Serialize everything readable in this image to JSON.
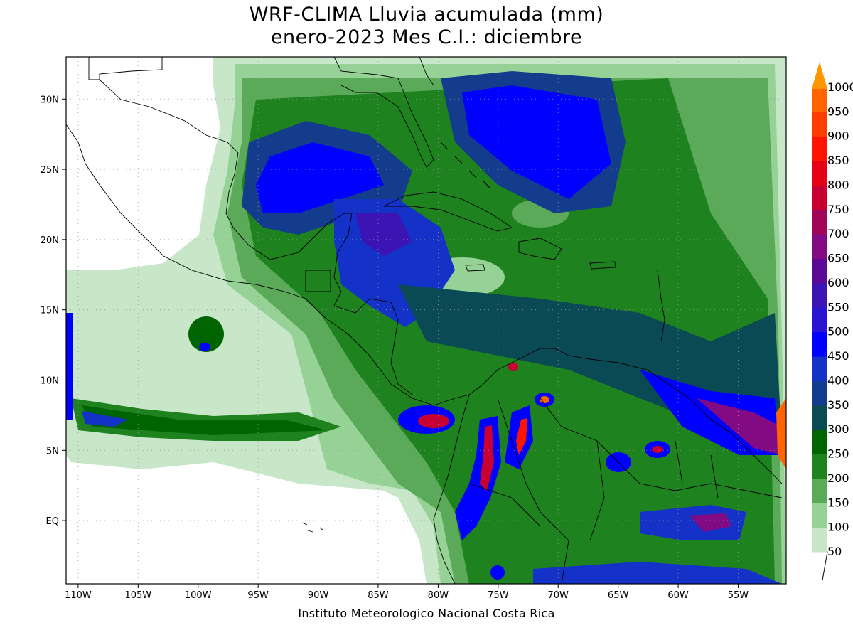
{
  "title": {
    "line1": "WRF-CLIMA Lluvia acumulada (mm)",
    "line2": "enero-2023 Mes C.I.: diciembre"
  },
  "credit": "Instituto Meteorologico Nacional Costa Rica",
  "axes": {
    "lon_range": [
      -111,
      -51
    ],
    "lat_range": [
      -4.5,
      33
    ],
    "lon_ticks": [
      {
        "value": -110,
        "label": "110W"
      },
      {
        "value": -105,
        "label": "105W"
      },
      {
        "value": -100,
        "label": "100W"
      },
      {
        "value": -95,
        "label": "95W"
      },
      {
        "value": -90,
        "label": "90W"
      },
      {
        "value": -85,
        "label": "85W"
      },
      {
        "value": -80,
        "label": "80W"
      },
      {
        "value": -75,
        "label": "75W"
      },
      {
        "value": -70,
        "label": "70W"
      },
      {
        "value": -65,
        "label": "65W"
      },
      {
        "value": -60,
        "label": "60W"
      },
      {
        "value": -55,
        "label": "55W"
      }
    ],
    "lat_ticks": [
      {
        "value": 30,
        "label": "30N"
      },
      {
        "value": 25,
        "label": "25N"
      },
      {
        "value": 20,
        "label": "20N"
      },
      {
        "value": 15,
        "label": "15N"
      },
      {
        "value": 10,
        "label": "10N"
      },
      {
        "value": 5,
        "label": "5N"
      },
      {
        "value": 0,
        "label": "EQ"
      }
    ]
  },
  "colorbar": [
    {
      "label": "50",
      "color": "#c8e6c8"
    },
    {
      "label": "100",
      "color": "#96d296"
    },
    {
      "label": "150",
      "color": "#5aaa5a"
    },
    {
      "label": "200",
      "color": "#1e821e"
    },
    {
      "label": "250",
      "color": "#006400"
    },
    {
      "label": "300",
      "color": "#0a4a55"
    },
    {
      "label": "350",
      "color": "#143c8c"
    },
    {
      "label": "400",
      "color": "#1432c8"
    },
    {
      "label": "450",
      "color": "#0000ff"
    },
    {
      "label": "500",
      "color": "#2814d2"
    },
    {
      "label": "550",
      "color": "#3c14b4"
    },
    {
      "label": "600",
      "color": "#5a0a96"
    },
    {
      "label": "650",
      "color": "#820a82"
    },
    {
      "label": "700",
      "color": "#a0055a"
    },
    {
      "label": "750",
      "color": "#c80032"
    },
    {
      "label": "800",
      "color": "#e60014"
    },
    {
      "label": "850",
      "color": "#ff1400"
    },
    {
      "label": "900",
      "color": "#ff3c00"
    },
    {
      "label": "950",
      "color": "#ff6400"
    },
    {
      "label": "1000",
      "color": "#ff9600"
    }
  ],
  "rain_colors": {
    "c50": "#c8e6c8",
    "c100": "#96d296",
    "c150": "#5aaa5a",
    "c200": "#1e821e",
    "c250": "#006400",
    "c300": "#0a4a55",
    "c350": "#143c8c",
    "c400": "#1432c8",
    "c450": "#0000ff",
    "c550": "#3c14b4",
    "c650": "#820a82",
    "c750": "#c80032",
    "c850": "#ff1400",
    "c950": "#ff6400",
    "c1000": "#ff9600"
  }
}
